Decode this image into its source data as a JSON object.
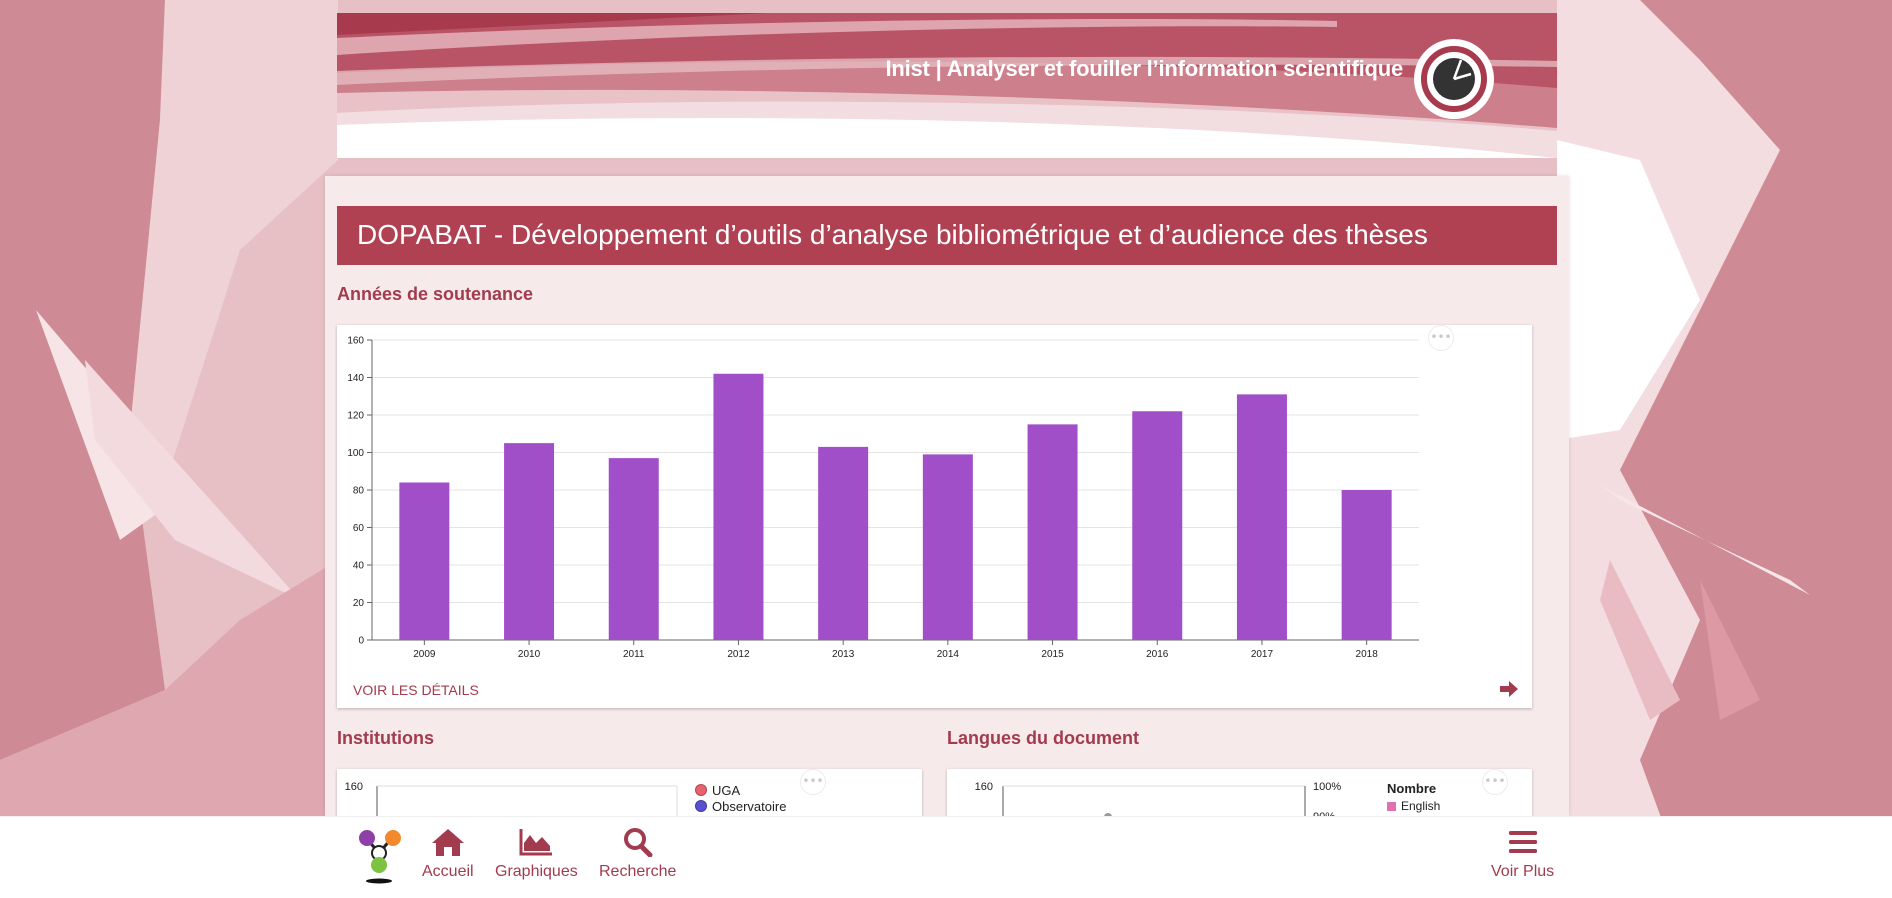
{
  "header": {
    "banner_title": "Inist | Analyser et fouiller l’information scientifique",
    "logo_icon": "inist-logo-icon"
  },
  "page": {
    "title": "DOPABAT - Développement d’outils d’analyse bibliométrique et d’audience des thèses"
  },
  "colors": {
    "accent": "#b04153",
    "accent_text": "#a33b4e",
    "bar": "#a14fc9",
    "panel": "#f6eaeb",
    "background": "#d48f99"
  },
  "sections": {
    "years": {
      "title": "Années de soutenance",
      "details_label": "VOIR LES DÉTAILS",
      "menu_icon": "more-dots-icon",
      "arrow_icon": "arrow-right-icon"
    },
    "institutions": {
      "title": "Institutions",
      "menu_icon": "more-dots-icon",
      "legend": [
        {
          "label": "UGA",
          "color": "#e8626e"
        },
        {
          "label": "Observatoire",
          "color": "#5a4fcf"
        }
      ]
    },
    "languages": {
      "title": "Langues du document",
      "menu_icon": "more-dots-icon",
      "legend_title": "Nombre",
      "legend": [
        {
          "label": "English",
          "color": "#e26fb1"
        }
      ]
    }
  },
  "chart_data": [
    {
      "type": "bar",
      "title": "",
      "categories": [
        "2009",
        "2010",
        "2011",
        "2012",
        "2013",
        "2014",
        "2015",
        "2016",
        "2017",
        "2018"
      ],
      "values": [
        84,
        105,
        97,
        142,
        103,
        99,
        115,
        122,
        131,
        80
      ],
      "xlabel": "",
      "ylabel": "",
      "ylim": [
        0,
        160
      ],
      "yticks": [
        0,
        20,
        40,
        60,
        80,
        100,
        120,
        140,
        160
      ],
      "grid": true,
      "color": "#a14fc9"
    },
    {
      "type": "bar",
      "title": "",
      "ytick_visible": "160",
      "partial": true
    },
    {
      "type": "line",
      "title": "",
      "ytick_left_visible": "160",
      "ytick_right_visible": [
        "100%",
        "90%"
      ],
      "partial": true
    }
  ],
  "bottom_nav": {
    "brand_icon": "app-logo-icon",
    "items": [
      {
        "label": "Accueil",
        "icon": "home-icon"
      },
      {
        "label": "Graphiques",
        "icon": "area-chart-icon"
      },
      {
        "label": "Recherche",
        "icon": "search-icon"
      }
    ],
    "more": {
      "label": "Voir Plus",
      "icon": "hamburger-menu-icon"
    }
  }
}
